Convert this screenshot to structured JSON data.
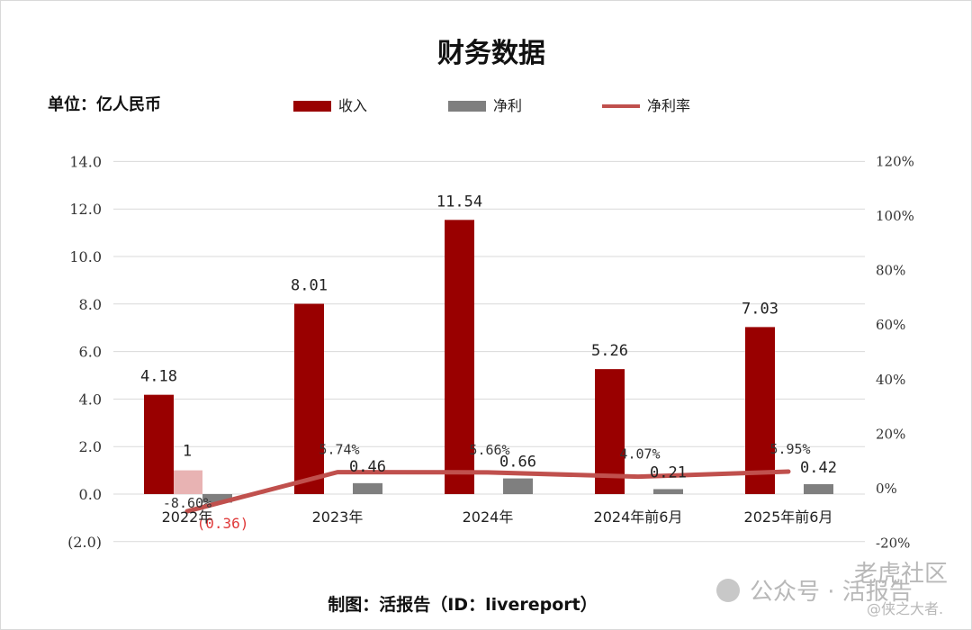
{
  "chart_data": {
    "type": "bar",
    "title": "财务数据",
    "unit_label": "单位：亿人民币",
    "categories": [
      "2022年",
      "2023年",
      "2024年",
      "2024年前6月",
      "2025年前6月"
    ],
    "series": [
      {
        "name": "收入",
        "kind": "bar",
        "axis": "left",
        "color": "#990000",
        "values": [
          4.18,
          8.01,
          11.54,
          5.26,
          7.03
        ],
        "labels": [
          "4.18",
          "8.01",
          "11.54",
          "5.26",
          "7.03"
        ]
      },
      {
        "name": "净利",
        "kind": "bar",
        "axis": "left",
        "color": "#7f7f7f",
        "values": [
          -0.36,
          0.46,
          0.66,
          0.21,
          0.42
        ],
        "labels": [
          "(0.36)",
          "0.46",
          "0.66",
          "0.21",
          "0.42"
        ]
      },
      {
        "name": "净利率",
        "kind": "line",
        "axis": "right",
        "color": "#c0504d",
        "values": [
          -8.6,
          5.74,
          5.66,
          4.07,
          5.95
        ],
        "labels": [
          "-8.60%",
          "5.74%",
          "5.66%",
          "4.07%",
          "5.95%"
        ]
      }
    ],
    "left_axis": {
      "min": -2.0,
      "max": 14.0,
      "step": 2.0,
      "tick_labels": [
        "(2.0)",
        "0.0",
        "2.0",
        "4.0",
        "6.0",
        "8.0",
        "10.0",
        "12.0",
        "14.0"
      ]
    },
    "right_axis": {
      "min": -20,
      "max": 120,
      "step": 20,
      "tick_labels": [
        "-20%",
        "0%",
        "20%",
        "40%",
        "60%",
        "80%",
        "100%",
        "120%"
      ]
    },
    "stray_box": {
      "value": 1,
      "label": "1"
    },
    "grid": true,
    "legend_position": "top"
  },
  "footer": "制图：活报告（ID：livereport）",
  "watermark": {
    "line1": "公众号 · 活报告",
    "line2": "老虎社区",
    "line3": "@侠之大者."
  }
}
